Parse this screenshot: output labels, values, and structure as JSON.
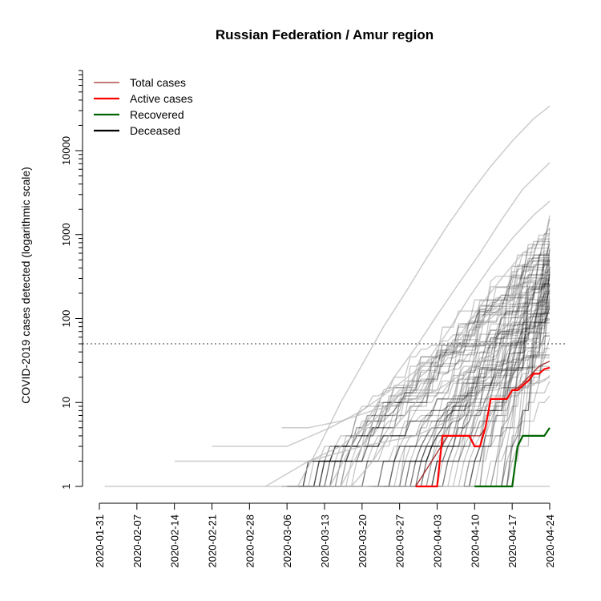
{
  "chart_data": {
    "type": "line",
    "title": "Russian Federation / Amur region",
    "xlabel": "",
    "ylabel": "COVID-2019 cases detected (logarithmic scale)",
    "y_scale": "log",
    "ylim": [
      1,
      90000
    ],
    "xlim": [
      "2020-01-31",
      "2020-04-24"
    ],
    "x_ticks": [
      "2020-01-31",
      "2020-02-07",
      "2020-02-14",
      "2020-02-21",
      "2020-02-28",
      "2020-03-06",
      "2020-03-13",
      "2020-03-20",
      "2020-03-27",
      "2020-04-03",
      "2020-04-10",
      "2020-04-17",
      "2020-04-24"
    ],
    "y_ticks": [
      1,
      10,
      100,
      1000,
      10000
    ],
    "y_tick_labels": [
      "1",
      "10",
      "100",
      "1000",
      "10000"
    ],
    "threshold_line": 50,
    "legend": {
      "position": "top-left",
      "entries": [
        {
          "label": "Total cases",
          "color": "#a52a2a"
        },
        {
          "label": "Active cases",
          "color": "#ff0000"
        },
        {
          "label": "Recovered",
          "color": "#006400"
        },
        {
          "label": "Deceased",
          "color": "#000000"
        }
      ]
    },
    "colors": {
      "background_regions": "#000000",
      "highlight_regions": "#bbbbbb"
    },
    "series": [
      {
        "name": "Total cases",
        "color": "#a52a2a",
        "x": [
          "2020-03-30",
          "2020-04-05",
          "2020-04-06",
          "2020-04-07",
          "2020-04-08",
          "2020-04-09",
          "2020-04-10",
          "2020-04-11",
          "2020-04-12",
          "2020-04-13",
          "2020-04-14",
          "2020-04-15",
          "2020-04-16",
          "2020-04-17",
          "2020-04-18",
          "2020-04-19",
          "2020-04-20",
          "2020-04-21",
          "2020-04-22",
          "2020-04-23",
          "2020-04-24"
        ],
        "y": [
          1,
          4,
          4,
          4,
          4,
          4,
          4,
          4,
          5,
          11,
          11,
          11,
          11,
          14,
          15,
          17,
          20,
          23,
          27,
          29,
          31
        ]
      },
      {
        "name": "Active cases",
        "color": "#ff0000",
        "x": [
          "2020-03-30",
          "2020-04-02",
          "2020-04-03",
          "2020-04-04",
          "2020-04-05",
          "2020-04-06",
          "2020-04-07",
          "2020-04-08",
          "2020-04-09",
          "2020-04-10",
          "2020-04-11",
          "2020-04-12",
          "2020-04-13",
          "2020-04-14",
          "2020-04-15",
          "2020-04-16",
          "2020-04-17",
          "2020-04-18",
          "2020-04-19",
          "2020-04-20",
          "2020-04-21",
          "2020-04-22",
          "2020-04-23",
          "2020-04-24"
        ],
        "y": [
          1,
          1,
          1,
          4,
          4,
          4,
          4,
          4,
          4,
          3,
          3,
          5,
          11,
          11,
          11,
          11,
          14,
          14,
          16,
          18,
          22,
          22,
          25,
          26
        ]
      },
      {
        "name": "Recovered",
        "color": "#006400",
        "x": [
          "2020-04-10",
          "2020-04-16",
          "2020-04-17",
          "2020-04-18",
          "2020-04-19",
          "2020-04-20",
          "2020-04-21",
          "2020-04-22",
          "2020-04-23",
          "2020-04-24"
        ],
        "y": [
          1,
          1,
          1,
          3,
          4,
          4,
          4,
          4,
          4,
          5
        ]
      }
    ],
    "background_series_count": 90,
    "highlight_series": [
      {
        "x": [
          "2020-03-08",
          "2020-03-12",
          "2020-03-16",
          "2020-03-20",
          "2020-03-24",
          "2020-03-28",
          "2020-04-01",
          "2020-04-05",
          "2020-04-09",
          "2020-04-13",
          "2020-04-17",
          "2020-04-21",
          "2020-04-24"
        ],
        "y": [
          1,
          3,
          10,
          28,
          80,
          200,
          520,
          1300,
          3000,
          6500,
          13000,
          24000,
          34000
        ]
      },
      {
        "x": [
          "2020-03-14",
          "2020-03-18",
          "2020-03-22",
          "2020-03-26",
          "2020-03-30",
          "2020-04-03",
          "2020-04-07",
          "2020-04-11",
          "2020-04-15",
          "2020-04-19",
          "2020-04-24"
        ],
        "y": [
          1,
          3,
          8,
          20,
          45,
          110,
          260,
          600,
          1500,
          3500,
          7200
        ]
      },
      {
        "x": [
          "2020-03-16",
          "2020-03-20",
          "2020-03-24",
          "2020-03-28",
          "2020-04-01",
          "2020-04-05",
          "2020-04-09",
          "2020-04-13",
          "2020-04-17",
          "2020-04-21",
          "2020-04-24"
        ],
        "y": [
          1,
          3,
          7,
          15,
          30,
          70,
          180,
          420,
          900,
          1700,
          2500
        ]
      },
      {
        "x": [
          "2020-03-18",
          "2020-03-22",
          "2020-03-26",
          "2020-03-30",
          "2020-04-03",
          "2020-04-07",
          "2020-04-11",
          "2020-04-15",
          "2020-04-19",
          "2020-04-24"
        ],
        "y": [
          1,
          2,
          5,
          10,
          25,
          60,
          140,
          300,
          600,
          1000
        ]
      },
      {
        "x": [
          "2020-02-14",
          "2020-02-19",
          "2020-03-10",
          "2020-03-16",
          "2020-03-22",
          "2020-03-28",
          "2020-04-03",
          "2020-04-09",
          "2020-04-15",
          "2020-04-20",
          "2020-04-24"
        ],
        "y": [
          2,
          2,
          2,
          3,
          6,
          14,
          30,
          60,
          130,
          260,
          350
        ]
      },
      {
        "x": [
          "2020-02-21",
          "2020-03-02",
          "2020-03-06",
          "2020-03-14",
          "2020-03-20",
          "2020-03-26",
          "2020-04-01",
          "2020-04-07",
          "2020-04-13",
          "2020-04-19",
          "2020-04-24"
        ],
        "y": [
          3,
          3,
          3,
          5,
          8,
          15,
          30,
          55,
          120,
          250,
          400
        ]
      },
      {
        "x": [
          "2020-03-05",
          "2020-03-10",
          "2020-03-16",
          "2020-03-22",
          "2020-03-28",
          "2020-04-03",
          "2020-04-09",
          "2020-04-15",
          "2020-04-20",
          "2020-04-24"
        ],
        "y": [
          5,
          5,
          6,
          8,
          10,
          14,
          25,
          45,
          70,
          90
        ]
      },
      {
        "x": [
          "2020-03-02",
          "2020-03-10",
          "2020-03-20",
          "2020-03-30",
          "2020-04-05",
          "2020-04-12",
          "2020-04-18",
          "2020-04-24"
        ],
        "y": [
          1,
          2,
          3,
          4,
          6,
          9,
          14,
          20
        ]
      },
      {
        "x": [
          "2020-02-01",
          "2020-04-24"
        ],
        "y": [
          1,
          1
        ]
      }
    ]
  }
}
